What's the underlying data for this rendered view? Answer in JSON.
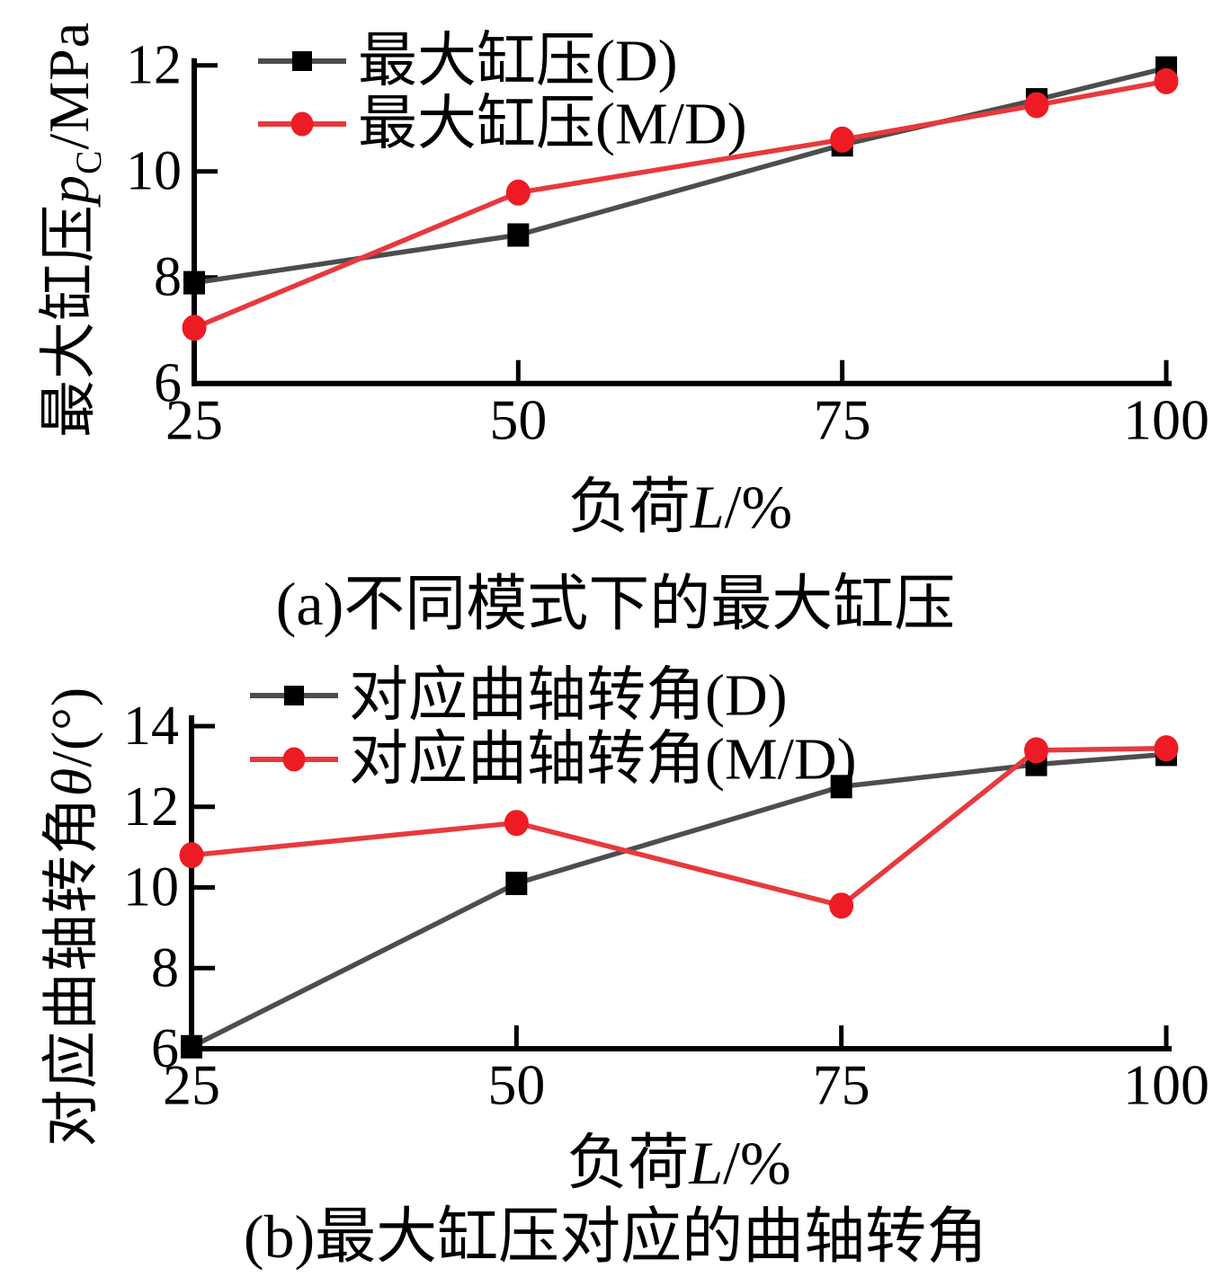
{
  "page": {
    "background": "#ffffff"
  },
  "chart_data": [
    {
      "id": "a",
      "type": "line",
      "title": "(a)不同模式下的最大缸压",
      "xlabel_parts": {
        "cjk": "负荷",
        "var": "L",
        "unit": "/%"
      },
      "ylabel_parts": {
        "cjk": "最大缸压",
        "var": "p",
        "sub": "C",
        "unit": "/MPa"
      },
      "x": [
        25,
        50,
        75,
        90,
        100
      ],
      "series": [
        {
          "name": "最大缸压(D)",
          "marker": "square",
          "line_color": "#4d4d4d",
          "marker_color": "#000000",
          "values": [
            7.9,
            8.8,
            10.5,
            11.35,
            11.95
          ]
        },
        {
          "name": "最大缸压(M/D)",
          "marker": "circle",
          "line_color": "#e8393e",
          "marker_color": "#ed1c24",
          "values": [
            7.05,
            9.6,
            10.6,
            11.25,
            11.7
          ]
        }
      ],
      "xlim": [
        25,
        100
      ],
      "ylim": [
        6,
        12
      ],
      "xticks": [
        25,
        50,
        75,
        100
      ],
      "yticks": [
        6,
        8,
        10,
        12
      ],
      "grid": false,
      "legend_position": "top-left-inside"
    },
    {
      "id": "b",
      "type": "line",
      "title": "(b)最大缸压对应的曲轴转角",
      "xlabel_parts": {
        "cjk": "负荷",
        "var": "L",
        "unit": "/%"
      },
      "ylabel_parts": {
        "cjk": "对应曲轴转角",
        "var": "θ",
        "unit": "/(°)"
      },
      "x": [
        25,
        50,
        75,
        90,
        100
      ],
      "series": [
        {
          "name": "对应曲轴转角(D)",
          "marker": "square",
          "line_color": "#4d4d4d",
          "marker_color": "#000000",
          "values": [
            6.05,
            10.1,
            12.5,
            13.05,
            13.3
          ]
        },
        {
          "name": "对应曲轴转角(M/D)",
          "marker": "circle",
          "line_color": "#e8393e",
          "marker_color": "#ed1c24",
          "values": [
            10.8,
            11.6,
            9.55,
            13.4,
            13.45
          ]
        }
      ],
      "xlim": [
        25,
        100
      ],
      "ylim": [
        6,
        14
      ],
      "xticks": [
        25,
        50,
        75,
        100
      ],
      "yticks": [
        6,
        8,
        10,
        12,
        14
      ],
      "grid": false,
      "legend_position": "top-left-inside"
    }
  ]
}
